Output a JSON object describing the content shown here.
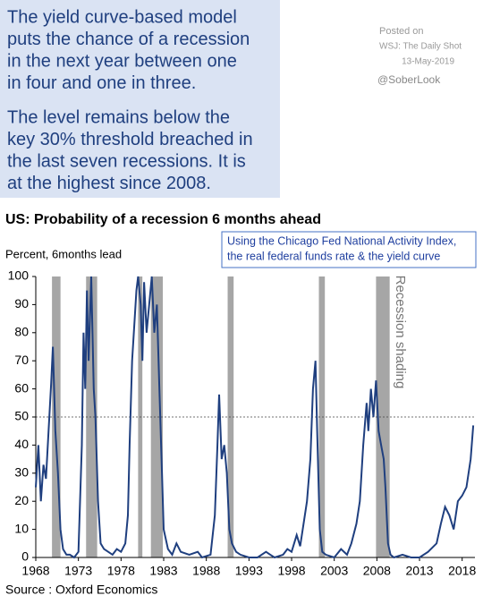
{
  "note_box": {
    "paragraphs": [
      [
        "The yield curve-based model",
        "puts the chance of a recession",
        "in the next year between one",
        "in four and one in three."
      ],
      [
        "The level remains below the",
        "key 30% threshold breached in",
        "the last seven recessions. It is",
        "at the highest since 2008."
      ]
    ]
  },
  "credit": {
    "posted": "Posted on",
    "source": "WSJ: The Daily Shot",
    "date": "13-May-2019",
    "handle": "@SoberLook"
  },
  "chart_data": {
    "type": "line",
    "title": "US: Probability of a recession 6 months ahead",
    "ylabel": "Percent, 6months lead",
    "legend_lines": [
      "Using the Chicago Fed National Activity Index,",
      "the real federal funds rate & the yield curve"
    ],
    "shading_label": "Recession shading",
    "source": "Source : Oxford Economics",
    "color": "#1f3f7f",
    "shading_color": "#a6a6a6",
    "threshold": 50,
    "recessions": [
      [
        1969.9,
        1970.9
      ],
      [
        1973.9,
        1975.2
      ],
      [
        1980.0,
        1980.5
      ],
      [
        1981.5,
        1982.9
      ],
      [
        1990.5,
        1991.2
      ],
      [
        2001.2,
        2001.9
      ],
      [
        2007.9,
        2009.5
      ]
    ],
    "x": [
      1968.0,
      1968.3,
      1968.6,
      1968.9,
      1969.2,
      1969.5,
      1969.8,
      1970.0,
      1970.3,
      1970.6,
      1970.9,
      1971.2,
      1971.6,
      1972.0,
      1972.5,
      1973.0,
      1973.4,
      1973.6,
      1973.8,
      1974.0,
      1974.2,
      1974.5,
      1974.8,
      1975.0,
      1975.3,
      1975.6,
      1976.0,
      1976.5,
      1977.0,
      1977.5,
      1978.0,
      1978.5,
      1978.8,
      1979.0,
      1979.3,
      1979.6,
      1979.8,
      1980.0,
      1980.3,
      1980.5,
      1980.7,
      1981.0,
      1981.3,
      1981.6,
      1981.9,
      1982.2,
      1982.5,
      1982.8,
      1983.0,
      1983.5,
      1984.0,
      1984.5,
      1985.0,
      1986.0,
      1987.0,
      1987.5,
      1988.5,
      1989.0,
      1989.3,
      1989.5,
      1989.8,
      1990.1,
      1990.4,
      1990.7,
      1991.0,
      1991.5,
      1992.0,
      1993.0,
      1994.0,
      1995.0,
      1995.5,
      1996.0,
      1997.0,
      1997.5,
      1998.0,
      1998.6,
      1999.0,
      1999.8,
      2000.2,
      2000.5,
      2000.8,
      2001.0,
      2001.3,
      2001.6,
      2002.0,
      2003.0,
      2003.8,
      2004.5,
      2005.0,
      2005.6,
      2006.0,
      2006.4,
      2006.8,
      2007.0,
      2007.3,
      2007.6,
      2007.9,
      2008.2,
      2008.5,
      2008.8,
      2009.0,
      2009.3,
      2009.6,
      2010.0,
      2011.0,
      2012.0,
      2013.0,
      2014.0,
      2015.0,
      2015.5,
      2016.0,
      2016.5,
      2017.0,
      2017.5,
      2018.0,
      2018.5,
      2019.0,
      2019.3
    ],
    "values": [
      25,
      40,
      20,
      33,
      28,
      45,
      62,
      75,
      45,
      30,
      10,
      3,
      1,
      1,
      0,
      2,
      40,
      80,
      60,
      95,
      70,
      100,
      60,
      50,
      20,
      5,
      3,
      2,
      1,
      3,
      2,
      5,
      15,
      40,
      70,
      85,
      95,
      100,
      90,
      70,
      98,
      80,
      90,
      100,
      80,
      90,
      60,
      30,
      10,
      3,
      1,
      5,
      2,
      1,
      2,
      0,
      1,
      15,
      40,
      58,
      35,
      40,
      30,
      10,
      5,
      2,
      1,
      0,
      0,
      2,
      1,
      0,
      1,
      3,
      2,
      8,
      4,
      20,
      35,
      60,
      70,
      45,
      10,
      2,
      1,
      0,
      3,
      1,
      5,
      12,
      20,
      40,
      55,
      45,
      60,
      50,
      63,
      45,
      40,
      35,
      25,
      5,
      1,
      0,
      1,
      0,
      0,
      2,
      5,
      12,
      18,
      15,
      10,
      20,
      22,
      25,
      35,
      47
    ],
    "xlim": [
      1968,
      2019.5
    ],
    "xticks": [
      1968,
      1973,
      1978,
      1983,
      1988,
      1993,
      1998,
      2003,
      2008,
      2013,
      2018
    ],
    "ylim": [
      0,
      100
    ],
    "yticks": [
      0,
      10,
      20,
      30,
      40,
      50,
      60,
      70,
      80,
      90,
      100
    ]
  }
}
